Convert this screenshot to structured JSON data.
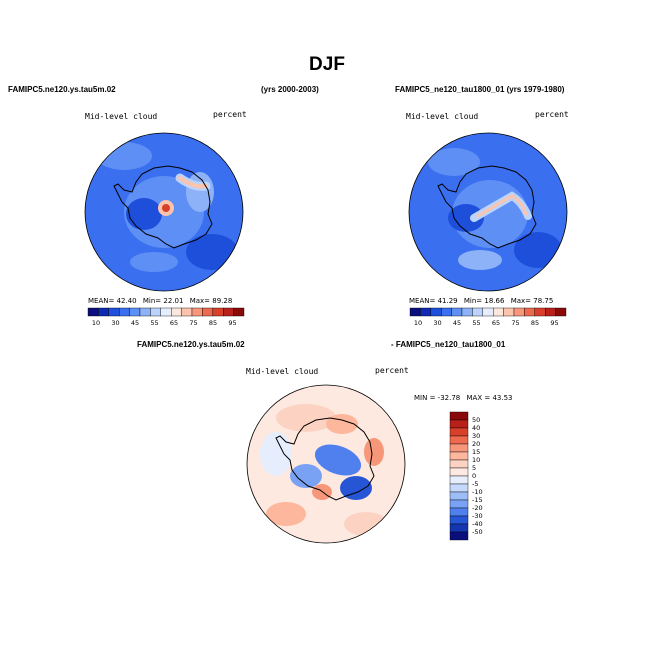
{
  "page": {
    "title": "DJF",
    "left_model": "FAMIPC5.ne120.ys.tau5m.02",
    "left_years": "(yrs 2000-2003)",
    "right_model_years": "FAMIPC5_ne120_tau1800_01 (yrs 1979-1980)",
    "diff_left": "FAMIPC5.ne120.ys.tau5m.02",
    "diff_right": "- FAMIPC5_ne120_tau1800_01"
  },
  "chart_data": [
    {
      "type": "heatmap",
      "projection": "polar-stereographic-south",
      "variable": "Mid-level cloud",
      "units": "percent",
      "stats": {
        "mean_label": "MEAN=",
        "mean": "42.40",
        "min_label": "Min=",
        "min": "22.01",
        "max_label": "Max=",
        "max": "89.28"
      },
      "colorbar": {
        "labels": [
          "10",
          "30",
          "45",
          "55",
          "65",
          "75",
          "85",
          "95"
        ],
        "colors": [
          "#0b0f7e",
          "#0f2bb5",
          "#1d4fdb",
          "#3a6ff0",
          "#5e8ff5",
          "#8db2f7",
          "#bcd3fb",
          "#e6eefd",
          "#fde6dc",
          "#fcc3ad",
          "#f7977a",
          "#ee6a4e",
          "#d8402a",
          "#b8201a",
          "#8a0a0a"
        ]
      }
    },
    {
      "type": "heatmap",
      "projection": "polar-stereographic-south",
      "variable": "Mid-level cloud",
      "units": "percent",
      "stats": {
        "mean_label": "MEAN=",
        "mean": "41.29",
        "min_label": "Min=",
        "min": "18.66",
        "max_label": "Max=",
        "max": "78.75"
      },
      "colorbar": {
        "labels": [
          "10",
          "30",
          "45",
          "55",
          "65",
          "75",
          "85",
          "95"
        ],
        "colors": [
          "#0b0f7e",
          "#0f2bb5",
          "#1d4fdb",
          "#3a6ff0",
          "#5e8ff5",
          "#8db2f7",
          "#bcd3fb",
          "#e6eefd",
          "#fde6dc",
          "#fcc3ad",
          "#f7977a",
          "#ee6a4e",
          "#d8402a",
          "#b8201a",
          "#8a0a0a"
        ]
      }
    },
    {
      "type": "heatmap",
      "projection": "polar-stereographic-south",
      "variable": "Mid-level cloud",
      "units": "percent",
      "stats": {
        "min_label": "MIN =",
        "min": "-32.78",
        "max_label": "MAX =",
        "max": "43.53"
      },
      "colorbar": {
        "labels": [
          "50",
          "40",
          "30",
          "20",
          "15",
          "10",
          "5",
          "0",
          "-5",
          "-10",
          "-15",
          "-20",
          "-30",
          "-40",
          "-50"
        ],
        "colors": [
          "#8a0a0a",
          "#b8201a",
          "#d8402a",
          "#ee6a4e",
          "#f7977a",
          "#fcb79c",
          "#fcd3c2",
          "#fde9e0",
          "#e6eefd",
          "#c6d8fb",
          "#9dbdf8",
          "#7aa2f4",
          "#4f80ee",
          "#2656d6",
          "#1436b0",
          "#0b0f7e"
        ]
      }
    }
  ]
}
